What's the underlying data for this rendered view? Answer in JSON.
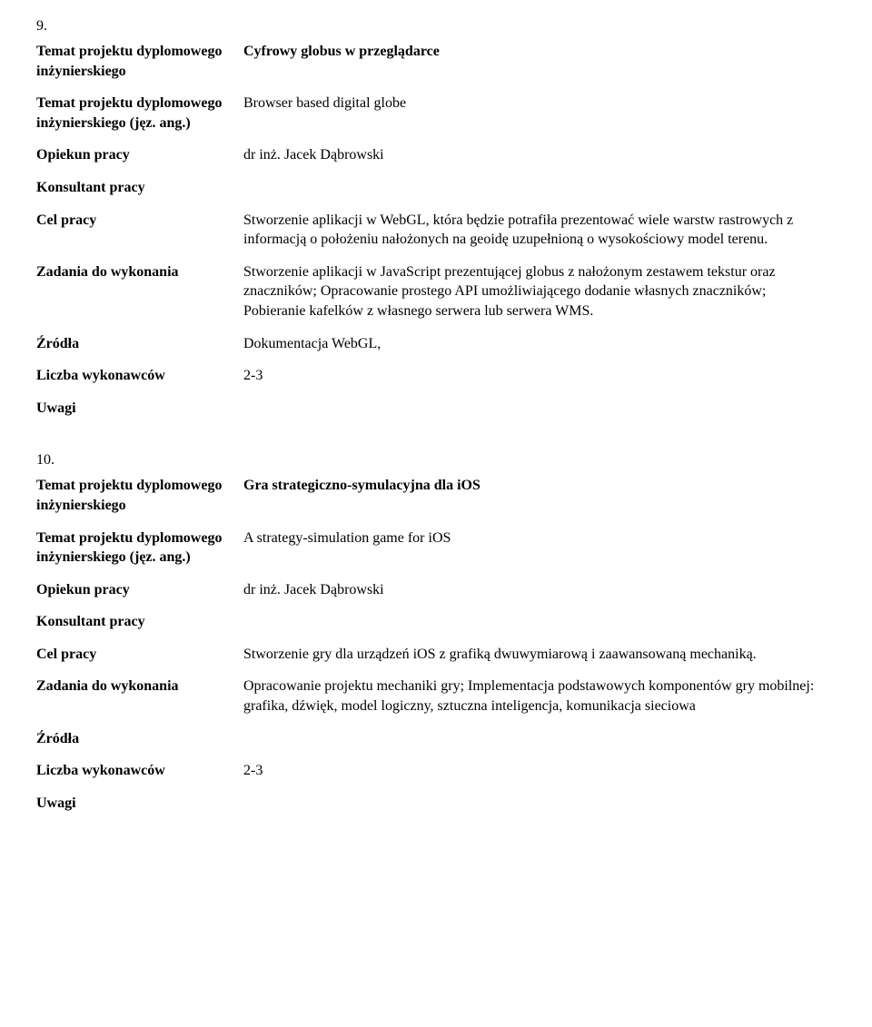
{
  "sections": [
    {
      "number": "9.",
      "rows": {
        "topic_label": "Temat projektu dyplomowego inżynierskiego",
        "topic_value": "Cyfrowy globus w przeglądarce",
        "topic_en_label": "Temat projektu dyplomowego inżynierskiego (jęz. ang.)",
        "topic_en_value": "Browser based digital globe",
        "supervisor_label": "Opiekun pracy",
        "supervisor_value": "dr inż. Jacek Dąbrowski",
        "consultant_label": "Konsultant pracy",
        "consultant_value": "",
        "goal_label": "Cel pracy",
        "goal_value": "Stworzenie aplikacji w WebGL, która będzie potrafiła prezentować wiele warstw rastrowych z informacją o położeniu nałożonych na geoidę uzupełnioną o wysokościowy model terenu.",
        "tasks_label": "Zadania do wykonania",
        "tasks_value": "Stworzenie aplikacji w JavaScript prezentującej globus z nałożonym zestawem tekstur oraz znaczników; Opracowanie prostego API umożliwiającego dodanie własnych znaczników;\nPobieranie kafelków z własnego serwera lub serwera WMS.",
        "sources_label": "Źródła",
        "sources_value": "Dokumentacja WebGL,",
        "count_label": "Liczba wykonawców",
        "count_value": "2-3",
        "notes_label": "Uwagi",
        "notes_value": ""
      }
    },
    {
      "number": "10.",
      "rows": {
        "topic_label": "Temat projektu dyplomowego inżynierskiego",
        "topic_value": "Gra strategiczno-symulacyjna dla iOS",
        "topic_en_label": "Temat projektu dyplomowego inżynierskiego (jęz. ang.)",
        "topic_en_value": "A strategy-simulation game for iOS",
        "supervisor_label": "Opiekun pracy",
        "supervisor_value": "dr inż. Jacek Dąbrowski",
        "consultant_label": "Konsultant pracy",
        "consultant_value": "",
        "goal_label": "Cel pracy",
        "goal_value": "Stworzenie gry dla urządzeń iOS z grafiką dwuwymiarową i zaawansowaną mechaniką.",
        "tasks_label": "Zadania do wykonania",
        "tasks_value": "Opracowanie projektu mechaniki gry; Implementacja podstawowych komponentów gry mobilnej: grafika, dźwięk, model logiczny, sztuczna inteligencja, komunikacja sieciowa",
        "sources_label": "Źródła",
        "sources_value": "",
        "count_label": "Liczba wykonawców",
        "count_value": "2-3",
        "notes_label": "Uwagi",
        "notes_value": ""
      }
    }
  ]
}
